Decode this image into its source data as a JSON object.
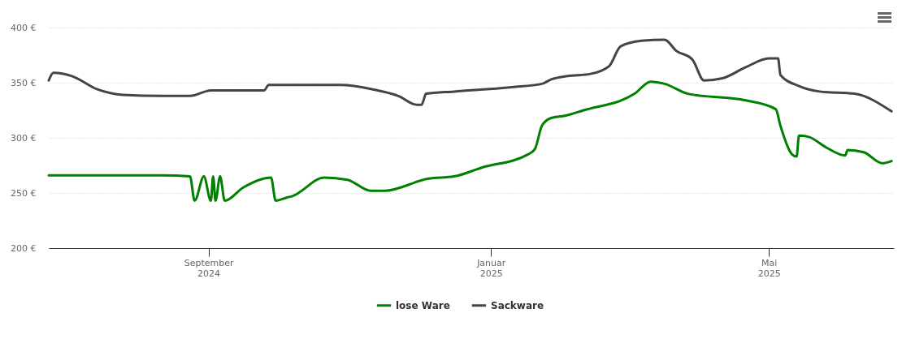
{
  "chart_data": {
    "type": "line",
    "xlim": [
      "2024-06-24",
      "2025-06-24"
    ],
    "xticks": [
      {
        "value": "2024-09-01",
        "label": "September 2024"
      },
      {
        "value": "2025-01-01",
        "label": "Januar 2025"
      },
      {
        "value": "2025-05-01",
        "label": "Mai 2025"
      }
    ],
    "ylim": [
      200,
      400
    ],
    "yticks": [
      {
        "value": 200,
        "label": "200 €"
      },
      {
        "value": 250,
        "label": "250 €"
      },
      {
        "value": 300,
        "label": "300 €"
      },
      {
        "value": 350,
        "label": "350 €"
      },
      {
        "value": 400,
        "label": "400 €"
      }
    ],
    "grid": "y",
    "legend": "bottom",
    "line_style": "solid",
    "series": [
      {
        "name": "lose Ware",
        "color": "#008000",
        "x": [
          "2024-06-24",
          "2024-08-12",
          "2024-08-24",
          "2024-08-26",
          "2024-08-30",
          "2024-09-02",
          "2024-09-03",
          "2024-09-04",
          "2024-09-06",
          "2024-09-08",
          "2024-09-16",
          "2024-09-28",
          "2024-09-30",
          "2024-10-05",
          "2024-10-07",
          "2024-10-21",
          "2024-10-31",
          "2024-11-10",
          "2024-11-16",
          "2024-12-05",
          "2024-12-16",
          "2024-12-28",
          "2025-01-17",
          "2025-01-20",
          "2025-01-23",
          "2025-01-27",
          "2025-02-02",
          "2025-02-10",
          "2025-03-04",
          "2025-03-11",
          "2025-03-17",
          "2025-03-27",
          "2025-04-21",
          "2025-05-04",
          "2025-05-06",
          "2025-05-11",
          "2025-05-13",
          "2025-05-14",
          "2025-05-18",
          "2025-05-26",
          "2025-06-03",
          "2025-06-04",
          "2025-06-11",
          "2025-06-19",
          "2025-06-23"
        ],
        "values": [
          266,
          266,
          265,
          243,
          265,
          243,
          265,
          243,
          265,
          243,
          255,
          264,
          243,
          246,
          247,
          264,
          262,
          252,
          252,
          263,
          265,
          273,
          285,
          290,
          311,
          318,
          320,
          325,
          340,
          351,
          349,
          340,
          334,
          326,
          311,
          285,
          283,
          302,
          301,
          291,
          284,
          289,
          287,
          277,
          279
        ]
      },
      {
        "name": "Sackware",
        "color": "#444444",
        "x": [
          "2024-06-24",
          "2024-06-26",
          "2024-07-04",
          "2024-07-15",
          "2024-07-26",
          "2024-08-12",
          "2024-08-24",
          "2024-09-02",
          "2024-09-25",
          "2024-09-27",
          "2024-10-28",
          "2024-11-11",
          "2024-11-22",
          "2024-11-30",
          "2024-12-02",
          "2024-12-04",
          "2024-12-16",
          "2025-01-10",
          "2025-01-23",
          "2025-01-27",
          "2025-02-03",
          "2025-02-13",
          "2025-02-21",
          "2025-02-26",
          "2025-03-07",
          "2025-03-17",
          "2025-03-22",
          "2025-03-29",
          "2025-04-03",
          "2025-04-11",
          "2025-04-21",
          "2025-05-01",
          "2025-05-05",
          "2025-05-06",
          "2025-05-14",
          "2025-05-23",
          "2025-06-07",
          "2025-06-23"
        ],
        "values": [
          352,
          359,
          356,
          344,
          339,
          338,
          338,
          343,
          343,
          348,
          348,
          344,
          338,
          330,
          330,
          340,
          342,
          346,
          349,
          353,
          356,
          358,
          365,
          383,
          388,
          389,
          379,
          371,
          352,
          354,
          364,
          372,
          372,
          357,
          347,
          342,
          340,
          324
        ]
      }
    ]
  }
}
